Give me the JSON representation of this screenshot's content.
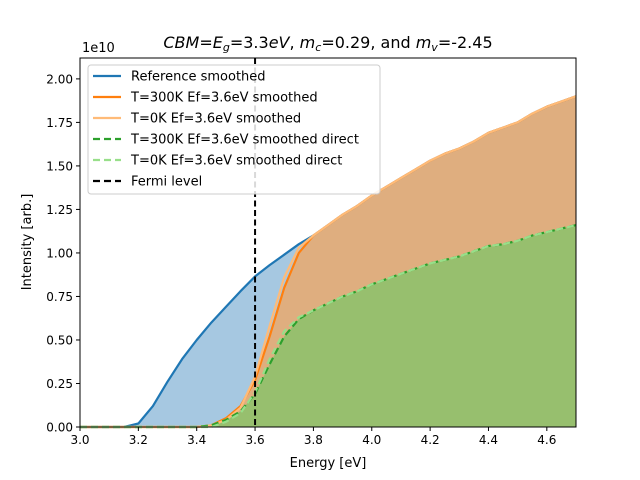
{
  "chart_data": {
    "type": "area",
    "title": {
      "parts": [
        {
          "t": "CBM",
          "style": "italic"
        },
        {
          "t": "=",
          "style": "normal"
        },
        {
          "t": "E",
          "style": "italic"
        },
        {
          "t": "g",
          "style": "italic-sub"
        },
        {
          "t": "=3.3",
          "style": "normal"
        },
        {
          "t": "eV",
          "style": "italic"
        },
        {
          "t": ", ",
          "style": "normal"
        },
        {
          "t": "m",
          "style": "italic"
        },
        {
          "t": "c",
          "style": "italic-sub"
        },
        {
          "t": "=0.29, and ",
          "style": "normal"
        },
        {
          "t": "m",
          "style": "italic"
        },
        {
          "t": "v",
          "style": "italic-sub"
        },
        {
          "t": "=-2.45",
          "style": "normal"
        }
      ]
    },
    "xlabel": "Energy [eV]",
    "ylabel": "Intensity [arb.]",
    "y_offset_label": "1e10",
    "xlim": [
      3.0,
      4.7
    ],
    "ylim": [
      0.0,
      2.12
    ],
    "x_ticks": [
      "3.0",
      "3.2",
      "3.4",
      "3.6",
      "3.8",
      "4.0",
      "4.2",
      "4.4",
      "4.6"
    ],
    "x_tick_values": [
      3.0,
      3.2,
      3.4,
      3.6,
      3.8,
      4.0,
      4.2,
      4.4,
      4.6
    ],
    "y_ticks": [
      "0.00",
      "0.25",
      "0.50",
      "0.75",
      "1.00",
      "1.25",
      "1.50",
      "1.75",
      "2.00"
    ],
    "y_tick_values": [
      0.0,
      0.25,
      0.5,
      0.75,
      1.0,
      1.25,
      1.5,
      1.75,
      2.0
    ],
    "fermi_level": 3.6,
    "legend_position": "top-left",
    "legend": [
      {
        "label": "Reference smoothed",
        "color": "#1f77b4",
        "dash": false
      },
      {
        "label": "T=300K Ef=3.6eV smoothed",
        "color": "#ff7f0e",
        "dash": false
      },
      {
        "label": "T=0K Ef=3.6eV smoothed",
        "color": "#ffbb78",
        "dash": false
      },
      {
        "label": "T=300K Ef=3.6eV smoothed direct",
        "color": "#2ca02c",
        "dash": true
      },
      {
        "label": "T=0K Ef=3.6eV smoothed direct",
        "color": "#98df8a",
        "dash": true
      },
      {
        "label": "Fermi level",
        "color": "#000000",
        "dash": true
      }
    ],
    "series": [
      {
        "name": "Reference smoothed",
        "color": "#1f77b4",
        "fill": "#a6c8e1",
        "x": [
          3.0,
          3.15,
          3.2,
          3.25,
          3.3,
          3.35,
          3.4,
          3.45,
          3.5,
          3.55,
          3.6,
          3.65,
          3.7,
          3.75,
          3.8,
          3.85,
          3.9,
          3.95,
          4.0,
          4.05,
          4.1,
          4.15,
          4.2,
          4.25,
          4.3,
          4.35,
          4.4,
          4.45,
          4.5,
          4.55,
          4.6,
          4.65,
          4.7
        ],
        "y": [
          0.0,
          0.0,
          0.02,
          0.12,
          0.26,
          0.39,
          0.5,
          0.6,
          0.69,
          0.78,
          0.865,
          0.93,
          0.99,
          1.05,
          1.1,
          1.16,
          1.22,
          1.27,
          1.33,
          1.38,
          1.43,
          1.48,
          1.53,
          1.57,
          1.6,
          1.64,
          1.69,
          1.72,
          1.75,
          1.8,
          1.84,
          1.87,
          1.9
        ]
      },
      {
        "name": "T=300K Ef=3.6eV smoothed",
        "color": "#ff7f0e",
        "fill": "#dfae7f",
        "x": [
          3.0,
          3.4,
          3.45,
          3.5,
          3.55,
          3.6,
          3.65,
          3.7,
          3.75,
          3.8,
          3.85,
          3.9,
          3.95,
          4.0,
          4.05,
          4.1,
          4.15,
          4.2,
          4.25,
          4.3,
          4.35,
          4.4,
          4.45,
          4.5,
          4.55,
          4.6,
          4.65,
          4.7
        ],
        "y": [
          0.0,
          0.0,
          0.01,
          0.05,
          0.12,
          0.27,
          0.52,
          0.8,
          1.0,
          1.1,
          1.16,
          1.22,
          1.27,
          1.33,
          1.38,
          1.43,
          1.48,
          1.53,
          1.57,
          1.6,
          1.64,
          1.69,
          1.72,
          1.75,
          1.8,
          1.84,
          1.87,
          1.9
        ]
      },
      {
        "name": "T=0K Ef=3.6eV smoothed",
        "color": "#ffbb78",
        "x": [
          3.0,
          3.4,
          3.45,
          3.5,
          3.55,
          3.6,
          3.65,
          3.7,
          3.75,
          3.8,
          3.85,
          3.9,
          3.95,
          4.0,
          4.05,
          4.1,
          4.15,
          4.2,
          4.25,
          4.3,
          4.35,
          4.4,
          4.45,
          4.5,
          4.55,
          4.6,
          4.65,
          4.7
        ],
        "y": [
          0.0,
          0.0,
          0.01,
          0.04,
          0.11,
          0.29,
          0.58,
          0.86,
          1.03,
          1.1,
          1.16,
          1.22,
          1.27,
          1.33,
          1.38,
          1.43,
          1.48,
          1.53,
          1.57,
          1.6,
          1.64,
          1.69,
          1.72,
          1.75,
          1.8,
          1.84,
          1.87,
          1.9
        ]
      },
      {
        "name": "T=300K Ef=3.6eV smoothed direct",
        "color": "#2ca02c",
        "fill": "#97bf6e",
        "dash": true,
        "x": [
          3.0,
          3.4,
          3.45,
          3.5,
          3.55,
          3.6,
          3.65,
          3.7,
          3.75,
          3.8,
          3.85,
          3.9,
          3.95,
          4.0,
          4.05,
          4.1,
          4.15,
          4.2,
          4.25,
          4.3,
          4.35,
          4.4,
          4.45,
          4.5,
          4.55,
          4.6,
          4.65,
          4.7
        ],
        "y": [
          0.0,
          0.0,
          0.01,
          0.04,
          0.09,
          0.19,
          0.36,
          0.52,
          0.62,
          0.67,
          0.71,
          0.75,
          0.78,
          0.82,
          0.85,
          0.88,
          0.91,
          0.94,
          0.96,
          0.98,
          1.01,
          1.04,
          1.05,
          1.07,
          1.1,
          1.12,
          1.14,
          1.16
        ]
      },
      {
        "name": "T=0K Ef=3.6eV smoothed direct",
        "color": "#98df8a",
        "dash": true,
        "x": [
          3.0,
          3.4,
          3.45,
          3.5,
          3.55,
          3.6,
          3.65,
          3.7,
          3.75,
          3.8,
          3.85,
          3.9,
          3.95,
          4.0,
          4.05,
          4.1,
          4.15,
          4.2,
          4.25,
          4.3,
          4.35,
          4.4,
          4.45,
          4.5,
          4.55,
          4.6,
          4.65,
          4.7
        ],
        "y": [
          0.0,
          0.0,
          0.0,
          0.03,
          0.08,
          0.2,
          0.39,
          0.55,
          0.63,
          0.67,
          0.71,
          0.75,
          0.78,
          0.82,
          0.85,
          0.88,
          0.91,
          0.94,
          0.96,
          0.98,
          1.01,
          1.04,
          1.05,
          1.07,
          1.1,
          1.12,
          1.14,
          1.16
        ]
      }
    ]
  }
}
